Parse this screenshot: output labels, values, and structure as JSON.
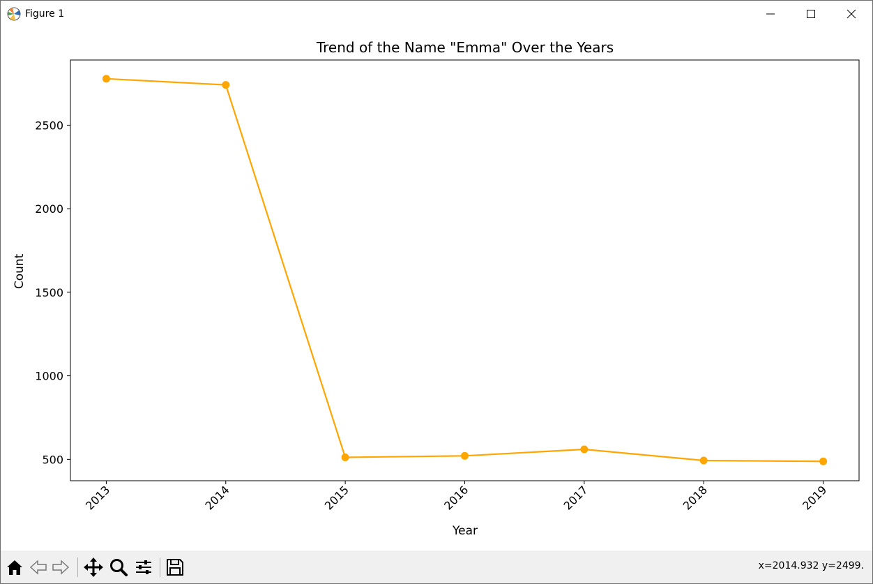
{
  "window": {
    "title": "Figure 1",
    "icons": [
      "matplotlib-icon",
      "minimize-icon",
      "maximize-icon",
      "close-icon"
    ]
  },
  "toolbar": {
    "icons": [
      "home-icon",
      "back-icon",
      "forward-icon",
      "pan-icon",
      "zoom-icon",
      "configure-subplots-icon",
      "save-icon"
    ],
    "coords_text": "x=2014.932 y=2499."
  },
  "chart_data": {
    "type": "line",
    "title": "Trend of the Name \"Emma\" Over the Years",
    "xlabel": "Year",
    "ylabel": "Count",
    "x": [
      2013,
      2014,
      2015,
      2016,
      2017,
      2018,
      2019
    ],
    "x_tick_labels": [
      "2013",
      "2014",
      "2015",
      "2016",
      "2017",
      "2018",
      "2019"
    ],
    "y_ticks": [
      500,
      1000,
      1500,
      2000,
      2500
    ],
    "y_tick_labels": [
      "500",
      "1000",
      "1500",
      "2000",
      "2500"
    ],
    "xlim": [
      2012.7,
      2019.3
    ],
    "ylim": [
      372,
      2890
    ],
    "series": [
      {
        "values": [
          2778,
          2741,
          512,
          521,
          560,
          493,
          488
        ],
        "color": "#FFA500",
        "marker": "circle"
      }
    ],
    "x_tick_rotation_deg": 45,
    "grid": false,
    "legend": "none"
  }
}
